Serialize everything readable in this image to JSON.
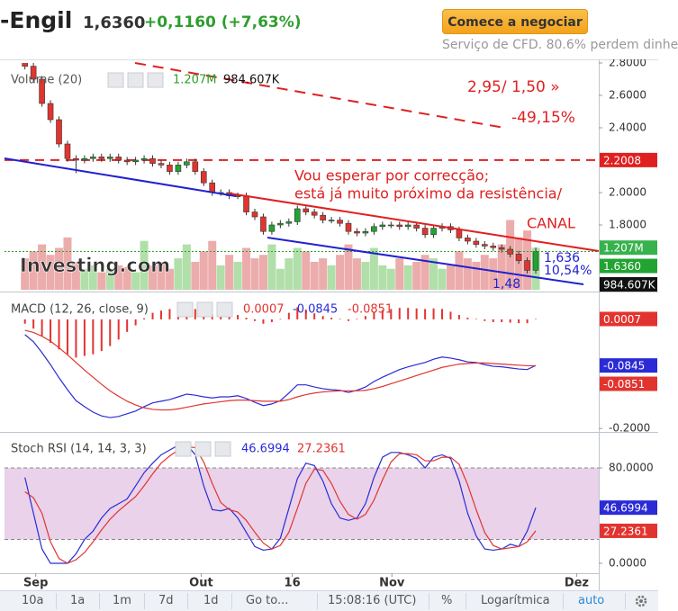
{
  "header": {
    "symbol": "-Engil",
    "price": "1,6360",
    "change": "+0,1160 (+7,63%)",
    "button": "Comece a negociar",
    "disclaimer": "Serviço de CFD. 80.6% perdem dinhe"
  },
  "toolbar": [
    "10a",
    "1a",
    "1m",
    "7d",
    "1d",
    "Go to...",
    "15:08:16 (UTC)",
    "%",
    "Logarítmica",
    "auto"
  ],
  "chart_data": [
    {
      "type": "candlestick",
      "legend": "Volume (20)",
      "logo": "Investing.com",
      "xlim": [
        -2.4,
        67.4
      ],
      "ylim": [
        1.4,
        2.8
      ],
      "yticks": [
        {
          "value": 2.8,
          "label": "2.8000"
        },
        {
          "value": 2.6,
          "label": "2.6000"
        },
        {
          "value": 2.4,
          "label": "2.4000"
        },
        {
          "value": 2.0,
          "label": "2.0000"
        },
        {
          "value": 1.8,
          "label": "1.8000"
        }
      ],
      "up_color": "#22a332",
      "down_color": "#e2342f",
      "open": [
        2.82,
        2.78,
        2.7,
        2.55,
        2.45,
        2.3,
        2.21,
        2.2,
        2.21,
        2.22,
        2.21,
        2.22,
        2.2,
        2.19,
        2.2,
        2.21,
        2.18,
        2.17,
        2.13,
        2.17,
        2.19,
        2.13,
        2.06,
        2.0,
        2.0,
        1.98,
        1.98,
        1.88,
        1.85,
        1.76,
        1.8,
        1.81,
        1.82,
        1.9,
        1.88,
        1.86,
        1.83,
        1.83,
        1.81,
        1.76,
        1.75,
        1.76,
        1.79,
        1.8,
        1.8,
        1.79,
        1.8,
        1.78,
        1.74,
        1.78,
        1.79,
        1.77,
        1.72,
        1.7,
        1.68,
        1.67,
        1.66,
        1.65,
        1.62,
        1.58,
        1.52
      ],
      "high": [
        2.84,
        2.8,
        2.72,
        2.57,
        2.47,
        2.32,
        2.23,
        2.23,
        2.24,
        2.24,
        2.24,
        2.24,
        2.22,
        2.22,
        2.23,
        2.23,
        2.2,
        2.19,
        2.19,
        2.21,
        2.21,
        2.15,
        2.08,
        2.02,
        2.02,
        2.0,
        2.0,
        1.9,
        1.87,
        1.82,
        1.83,
        1.84,
        1.92,
        1.92,
        1.9,
        1.88,
        1.85,
        1.85,
        1.83,
        1.78,
        1.78,
        1.81,
        1.82,
        1.82,
        1.82,
        1.82,
        1.82,
        1.8,
        1.8,
        1.81,
        1.81,
        1.79,
        1.74,
        1.72,
        1.7,
        1.69,
        1.68,
        1.67,
        1.64,
        1.6,
        1.66
      ],
      "low": [
        2.76,
        2.68,
        2.53,
        2.43,
        2.28,
        2.19,
        2.12,
        2.18,
        2.19,
        2.19,
        2.19,
        2.18,
        2.17,
        2.17,
        2.18,
        2.16,
        2.15,
        2.11,
        2.11,
        2.15,
        2.11,
        2.04,
        1.98,
        1.98,
        1.96,
        1.96,
        1.86,
        1.83,
        1.74,
        1.74,
        1.78,
        1.79,
        1.8,
        1.86,
        1.84,
        1.81,
        1.81,
        1.79,
        1.74,
        1.73,
        1.73,
        1.74,
        1.77,
        1.78,
        1.77,
        1.77,
        1.76,
        1.72,
        1.72,
        1.76,
        1.75,
        1.7,
        1.68,
        1.66,
        1.65,
        1.64,
        1.63,
        1.6,
        1.56,
        1.5,
        1.5
      ],
      "close": [
        2.78,
        2.7,
        2.55,
        2.45,
        2.3,
        2.21,
        2.2,
        2.21,
        2.22,
        2.21,
        2.22,
        2.2,
        2.19,
        2.2,
        2.21,
        2.18,
        2.17,
        2.13,
        2.17,
        2.19,
        2.13,
        2.06,
        2.0,
        2.0,
        1.98,
        1.98,
        1.88,
        1.85,
        1.76,
        1.8,
        1.81,
        1.82,
        1.9,
        1.88,
        1.86,
        1.83,
        1.83,
        1.81,
        1.76,
        1.75,
        1.76,
        1.79,
        1.8,
        1.8,
        1.79,
        1.8,
        1.78,
        1.74,
        1.78,
        1.79,
        1.77,
        1.72,
        1.7,
        1.68,
        1.67,
        1.66,
        1.65,
        1.62,
        1.58,
        1.52,
        1.636
      ],
      "last_price": {
        "value": 1.636,
        "label": "1.6360"
      },
      "level": 2.2008,
      "level_color": "#e02020",
      "volume": {
        "ylim": [
          0,
          6500000
        ],
        "up_color": "#a8dba0",
        "down_color": "#eaa3a3",
        "values": [
          900000,
          1100000,
          1300000,
          1000000,
          1200000,
          1500000,
          800000,
          600000,
          700000,
          500000,
          600000,
          700000,
          650000,
          500000,
          1400000,
          700000,
          800000,
          600000,
          900000,
          1300000,
          800000,
          1100000,
          1400000,
          700000,
          1000000,
          800000,
          1200000,
          900000,
          1000000,
          1300000,
          600000,
          900000,
          1200000,
          1100000,
          800000,
          900000,
          700000,
          1000000,
          1300000,
          900000,
          800000,
          1200000,
          700000,
          600000,
          900000,
          700000,
          800000,
          1000000,
          900000,
          600000,
          700000,
          1100000,
          900000,
          800000,
          1000000,
          900000,
          1300000,
          2000000,
          1500000,
          1700000,
          1207000
        ],
        "last": {
          "value": 1207000,
          "label": "1.207M"
        },
        "ma": {
          "value": 984607,
          "label": "984.607K"
        }
      },
      "annotations": [
        "2,95/ 1,50 »",
        "-49,15%",
        "Vou esperar por correcção;",
        "está já muito próximo da resistência/",
        "CANAL",
        "1,636",
        "10,54%",
        "1,48"
      ]
    },
    {
      "type": "macd",
      "title": "MACD (12, 26, close, 9)",
      "xlim": [
        -2.4,
        67.4
      ],
      "ylim": [
        -0.203,
        0.046
      ],
      "yticks": [
        {
          "value": -0.2,
          "label": "-0.2000"
        }
      ],
      "histogram": {
        "color": "#e2342f",
        "values": [
          -0.008,
          -0.017,
          -0.03,
          -0.043,
          -0.055,
          -0.064,
          -0.07,
          -0.067,
          -0.064,
          -0.058,
          -0.049,
          -0.037,
          -0.023,
          -0.011,
          0.002,
          0.012,
          0.016,
          0.019,
          0.022,
          0.024,
          0.019,
          0.013,
          0.009,
          0.009,
          0.007,
          0.008,
          0.003,
          -0.003,
          -0.008,
          -0.005,
          0.001,
          0.012,
          0.022,
          0.018,
          0.011,
          0.006,
          0.003,
          0.001,
          -0.003,
          0.001,
          0.006,
          0.013,
          0.017,
          0.019,
          0.021,
          0.021,
          0.02,
          0.019,
          0.02,
          0.019,
          0.014,
          0.008,
          0.003,
          0.001,
          -0.003,
          -0.005,
          -0.005,
          -0.006,
          -0.007,
          -0.007,
          0.0007
        ]
      },
      "series": [
        {
          "color": "#2b2bd6",
          "values": [
            -0.028,
            -0.041,
            -0.061,
            -0.083,
            -0.107,
            -0.129,
            -0.149,
            -0.16,
            -0.17,
            -0.177,
            -0.18,
            -0.178,
            -0.173,
            -0.168,
            -0.16,
            -0.153,
            -0.15,
            -0.147,
            -0.142,
            -0.137,
            -0.139,
            -0.142,
            -0.144,
            -0.142,
            -0.142,
            -0.14,
            -0.145,
            -0.152,
            -0.158,
            -0.155,
            -0.149,
            -0.135,
            -0.12,
            -0.12,
            -0.124,
            -0.127,
            -0.129,
            -0.13,
            -0.134,
            -0.13,
            -0.124,
            -0.114,
            -0.106,
            -0.099,
            -0.092,
            -0.087,
            -0.083,
            -0.079,
            -0.073,
            -0.069,
            -0.071,
            -0.074,
            -0.078,
            -0.079,
            -0.083,
            -0.086,
            -0.087,
            -0.089,
            -0.091,
            -0.092,
            -0.0845
          ]
        },
        {
          "color": "#e2342f",
          "values": [
            -0.02,
            -0.024,
            -0.031,
            -0.04,
            -0.052,
            -0.065,
            -0.079,
            -0.093,
            -0.106,
            -0.119,
            -0.131,
            -0.141,
            -0.15,
            -0.157,
            -0.162,
            -0.165,
            -0.166,
            -0.166,
            -0.164,
            -0.161,
            -0.158,
            -0.155,
            -0.153,
            -0.151,
            -0.149,
            -0.148,
            -0.148,
            -0.149,
            -0.15,
            -0.15,
            -0.15,
            -0.147,
            -0.142,
            -0.138,
            -0.135,
            -0.133,
            -0.132,
            -0.131,
            -0.131,
            -0.131,
            -0.13,
            -0.127,
            -0.123,
            -0.118,
            -0.113,
            -0.108,
            -0.103,
            -0.098,
            -0.093,
            -0.088,
            -0.085,
            -0.082,
            -0.081,
            -0.08,
            -0.08,
            -0.081,
            -0.082,
            -0.083,
            -0.084,
            -0.085,
            -0.0851
          ]
        }
      ]
    },
    {
      "type": "stoch",
      "title": "Stoch RSI (14, 14, 3, 3)",
      "xlim": [
        -2.4,
        67.4
      ],
      "ylim": [
        -8.3,
        108.7
      ],
      "yticks": [
        {
          "value": 80,
          "label": "80.0000"
        },
        {
          "value": 0,
          "label": "0.0000"
        }
      ],
      "xticks": [
        {
          "value": 1.27,
          "label": "Sep"
        },
        {
          "value": 20.7,
          "label": "Out"
        },
        {
          "value": 31.4,
          "label": "16"
        },
        {
          "value": 43.1,
          "label": "Nov"
        },
        {
          "value": 64.8,
          "label": "Dez"
        }
      ],
      "band": [
        20,
        80
      ],
      "band_color": "#e9d2ea",
      "series": [
        {
          "color": "#2b2bd6",
          "values": [
            72,
            42,
            12,
            0,
            0,
            0,
            8,
            20,
            27,
            38,
            46,
            50,
            54,
            65,
            76,
            84,
            91,
            95,
            99,
            100,
            91,
            65,
            45,
            44,
            46,
            38,
            26,
            14,
            11,
            12,
            21,
            46,
            71,
            84,
            82,
            69,
            50,
            38,
            36,
            38,
            50,
            72,
            89,
            93,
            93,
            91,
            88,
            80,
            89,
            91,
            88,
            69,
            42,
            23,
            12,
            11,
            12,
            16,
            14,
            27,
            46.6994
          ]
        },
        {
          "color": "#e2342f",
          "values": [
            60,
            55,
            42,
            18,
            4,
            0,
            3,
            9,
            18,
            28,
            37,
            44,
            50,
            56,
            65,
            75,
            84,
            90,
            95,
            98,
            97,
            85,
            67,
            51,
            45,
            43,
            36,
            26,
            17,
            12,
            15,
            26,
            46,
            67,
            79,
            78,
            67,
            52,
            41,
            37,
            41,
            53,
            70,
            85,
            92,
            92,
            91,
            86,
            86,
            89,
            89,
            83,
            66,
            45,
            26,
            15,
            12,
            13,
            14,
            18,
            27.2361
          ]
        }
      ]
    }
  ]
}
